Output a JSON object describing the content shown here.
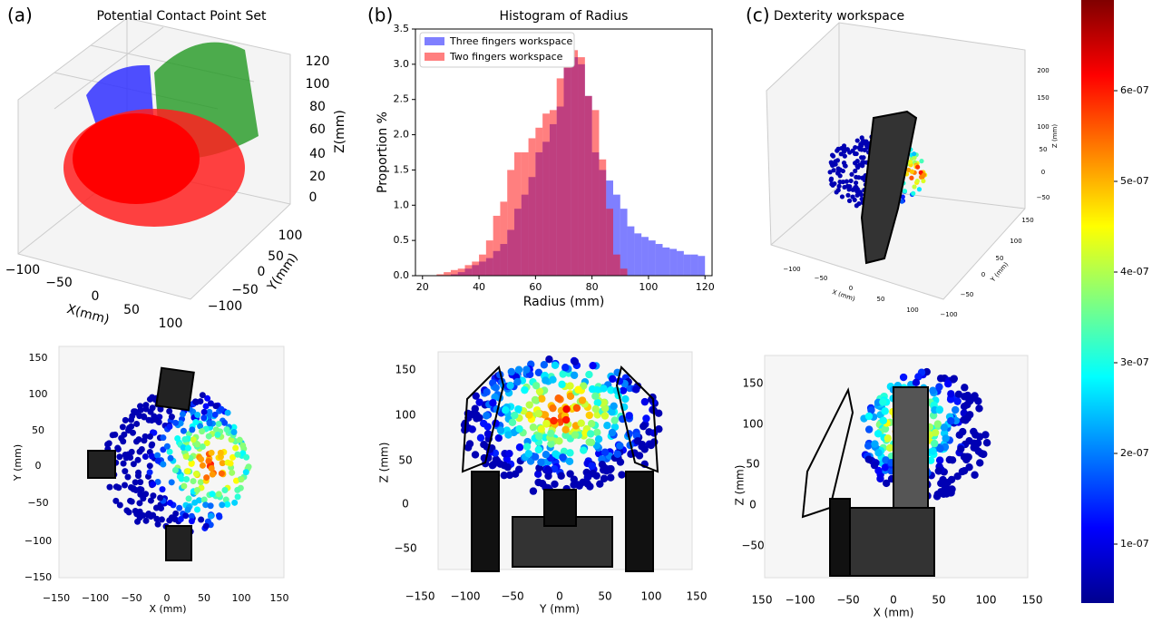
{
  "chart_data": {
    "type": "histogram",
    "title": "Histogram of Radius",
    "x_label": "Radius (mm)",
    "y_label": "Proportion %",
    "bins": [
      25,
      27.5,
      30,
      32.5,
      35,
      37.5,
      40,
      42.5,
      45,
      47.5,
      50,
      52.5,
      55,
      57.5,
      60,
      62.5,
      65,
      67.5,
      70,
      72.5,
      75,
      77.5,
      80,
      82.5,
      85,
      87.5,
      90,
      92.5,
      95,
      97.5,
      100,
      102.5,
      105,
      107.5,
      110,
      112.5,
      115,
      117.5,
      120
    ],
    "series": [
      {
        "name": "Three fingers workspace",
        "color": "#0000ff",
        "alpha": 0.5,
        "values": [
          0,
          0,
          0.02,
          0.05,
          0.1,
          0.15,
          0.2,
          0.25,
          0.35,
          0.45,
          0.65,
          0.95,
          1.15,
          1.4,
          1.75,
          1.9,
          2.15,
          2.4,
          2.95,
          3.1,
          3.0,
          2.55,
          1.75,
          1.5,
          1.35,
          1.15,
          0.95,
          0.7,
          0.6,
          0.55,
          0.5,
          0.45,
          0.4,
          0.38,
          0.35,
          0.3,
          0.3,
          0.28
        ]
      },
      {
        "name": "Two fingers workspace",
        "color": "#ff0000",
        "alpha": 0.5,
        "values": [
          0.02,
          0.05,
          0.08,
          0.1,
          0.15,
          0.2,
          0.3,
          0.5,
          0.85,
          1.05,
          1.5,
          1.75,
          1.75,
          1.95,
          2.1,
          2.3,
          2.35,
          2.8,
          3.1,
          3.2,
          3.1,
          2.55,
          2.35,
          1.65,
          0.95,
          0.3,
          0.1,
          0,
          0,
          0,
          0,
          0,
          0,
          0,
          0,
          0,
          0,
          0
        ]
      }
    ],
    "xlim": [
      17.5,
      122.5
    ],
    "xticks": [
      20,
      40,
      60,
      80,
      100,
      120
    ],
    "ylim": [
      0,
      3.5
    ],
    "yticks": [
      {
        "value": 0,
        "label": "0.0"
      },
      0.5,
      {
        "value": 1,
        "label": "1.0"
      },
      1.5,
      {
        "value": 2,
        "label": "2.0"
      },
      2.5,
      {
        "value": 3,
        "label": "3.0"
      },
      3.5
    ],
    "legend": "upper left"
  },
  "panels": {
    "a": {
      "label": "(a)",
      "title": "Potential Contact Point Set",
      "x_label": "X(mm)",
      "y_label": "Y(mm)",
      "z_label": "Z(mm)",
      "x_ticks": [
        "−100",
        "−50",
        "0",
        "50",
        "100"
      ],
      "y_ticks": [
        "100",
        "50",
        "0",
        "−50",
        "−100"
      ],
      "z_ticks": [
        "120",
        "100",
        "80",
        "60",
        "40",
        "20",
        "0"
      ]
    },
    "b": {
      "label": "(b)"
    },
    "c": {
      "label": "(c)",
      "title": "Dexterity workspace",
      "x_label": "X (mm)",
      "y_label": "Y (mm)",
      "z_label": "Z (mm)",
      "x_ticks": [
        "−100",
        "−50",
        "0",
        "50",
        "100"
      ],
      "y_ticks": [
        "150",
        "100",
        "50",
        "0",
        "−50",
        "−100"
      ],
      "z_ticks": [
        "200",
        "150",
        "100",
        "50",
        "0",
        "−50"
      ]
    },
    "top_view": {
      "x_label": "X (mm)",
      "y_label": "Y (mm)",
      "x_ticks": [
        "−150",
        "−100",
        "−50",
        "0",
        "50",
        "100",
        "150"
      ],
      "y_ticks": [
        "150",
        "100",
        "50",
        "0",
        "−50",
        "−100",
        "−150"
      ]
    },
    "side_view": {
      "x_label": "Y (mm)",
      "y_label": "Z (mm)",
      "x_ticks": [
        "−150",
        "−100",
        "−50",
        "0",
        "50",
        "100",
        "150"
      ],
      "y_ticks": [
        "150",
        "100",
        "50",
        "0",
        "−50"
      ]
    },
    "front_view": {
      "x_label": "X (mm)",
      "y_label": "Z (mm)",
      "x_ticks": [
        "150",
        "−100",
        "−50",
        "0",
        "50",
        "100",
        "150"
      ],
      "y_ticks": [
        "150",
        "100",
        "50",
        "0",
        "−50"
      ]
    }
  },
  "colorbar": {
    "colormap": "jet",
    "lim": [
      3.5e-08,
      7e-07
    ],
    "ticks": [
      {
        "value": 1e-07,
        "label": "1e-07"
      },
      {
        "value": 2e-07,
        "label": "2e-07"
      },
      {
        "value": 3e-07,
        "label": "3e-07"
      },
      {
        "value": 4e-07,
        "label": "4e-07"
      },
      {
        "value": 5e-07,
        "label": "5e-07"
      },
      {
        "value": 6e-07,
        "label": "6e-07"
      }
    ]
  }
}
